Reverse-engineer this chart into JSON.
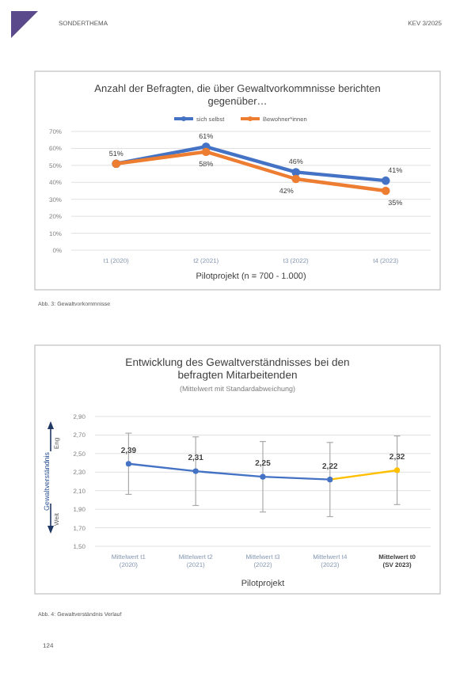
{
  "chart_data": [
    {
      "type": "line",
      "title": "Anzahl der Befragten, die über Gewaltvorkommnisse berichten gegenüber…",
      "xlabel": "Pilotprojekt (n = 700 - 1.000)",
      "categories": [
        "t1 (2020)",
        "t2 (2021)",
        "t3 (2022)",
        "t4 (2023)"
      ],
      "series": [
        {
          "name": "sich selbst",
          "color": "#4472c4",
          "values": [
            51,
            61,
            46,
            41
          ],
          "value_labels": [
            "51%",
            "61%",
            "46%",
            "41%"
          ]
        },
        {
          "name": "Bewohner*innen",
          "color": "#ed7d31",
          "values": [
            51,
            58,
            42,
            35
          ],
          "value_labels": [
            null,
            "58%",
            "42%",
            "35%"
          ]
        }
      ],
      "ylim": [
        0,
        70
      ],
      "yticks": [
        {
          "value": 0,
          "label": "0%"
        },
        {
          "value": 10,
          "label": "10%"
        },
        {
          "value": 20,
          "label": "20%"
        },
        {
          "value": 30,
          "label": "30%"
        },
        {
          "value": 40,
          "label": "40%"
        },
        {
          "value": 50,
          "label": "50%"
        },
        {
          "value": 60,
          "label": "60%"
        },
        {
          "value": 70,
          "label": "70%"
        }
      ],
      "grid": "y",
      "legend": "top",
      "marker": "circle",
      "line_style": "solid",
      "annotations": [
        "SONDERTHEMA",
        "KEV 3/2025",
        "Abb. 3: Gewaltvorkommnisse"
      ]
    },
    {
      "type": "line",
      "title": "Entwicklung des Gewaltverständnisses bei den befragten Mitarbeitenden",
      "subtitle": "(Mittelwert mit Standardabweichung)",
      "xlabel": "Pilotprojekt",
      "ylabel": "Gewaltverständnis",
      "categories": [
        "Mittelwert t1 (2020)",
        "Mittelwert t2 (2021)",
        "Mittelwert t3 (2022)",
        "Mittelwert t4 (2023)",
        "Mittelwert t0 (SV 2023)"
      ],
      "series": [
        {
          "colors": [
            "#4472c4",
            "#4472c4",
            "#4472c4",
            "#4472c4",
            "#ffc000"
          ],
          "values": [
            2.39,
            2.31,
            2.25,
            2.22,
            2.32
          ],
          "errors": [
            0.33,
            0.37,
            0.38,
            0.4,
            0.37
          ],
          "value_labels": [
            "2,39",
            "2,31",
            "2,25",
            "2,22",
            "2,32"
          ]
        }
      ],
      "ylim": [
        1.5,
        2.9
      ],
      "yticks": [
        {
          "value": 1.5,
          "label": "1,50"
        },
        {
          "value": 1.7,
          "label": "1,70"
        },
        {
          "value": 1.9,
          "label": "1,90"
        },
        {
          "value": 2.1,
          "label": "2,10"
        },
        {
          "value": 2.3,
          "label": "2,30"
        },
        {
          "value": 2.5,
          "label": "2,50"
        },
        {
          "value": 2.7,
          "label": "2,70"
        },
        {
          "value": 2.9,
          "label": "2,90"
        }
      ],
      "grid": "y",
      "marker": "circle",
      "line_style": "solid",
      "annotations": [
        "Eng",
        "Weit",
        "Abb. 4: Gewaltverständnis Verlauf",
        "124"
      ]
    }
  ]
}
